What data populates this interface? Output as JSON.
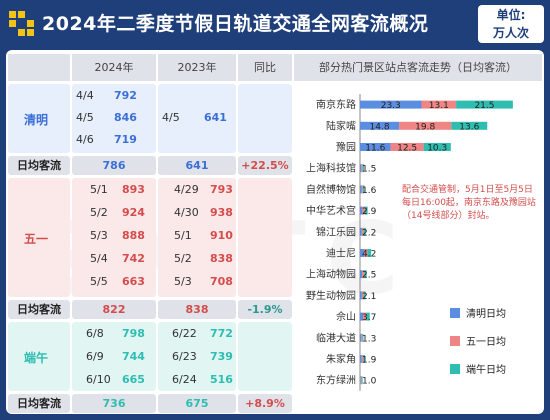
{
  "header": {
    "title": "2024年二季度节假日轨道交通全网客流概况",
    "unit_line1": "单位:",
    "unit_line2": "万人次"
  },
  "table": {
    "columns": [
      "2024年",
      "2023年",
      "同比"
    ],
    "chart_header": "部分热门景区站点客流走势（日均客流）",
    "sum_label": "日均客流",
    "sections": [
      {
        "name": "清明",
        "rows2024": [
          {
            "date": "4/4",
            "value": "792"
          },
          {
            "date": "4/5",
            "value": "846"
          },
          {
            "date": "4/6",
            "value": "719"
          }
        ],
        "rows2023": [
          {
            "date": "4/5",
            "value": "641"
          }
        ],
        "avg2024": "786",
        "avg2023": "641",
        "yoy": "+22.5%"
      },
      {
        "name": "五一",
        "rows2024": [
          {
            "date": "5/1",
            "value": "893"
          },
          {
            "date": "5/2",
            "value": "924"
          },
          {
            "date": "5/3",
            "value": "888"
          },
          {
            "date": "5/4",
            "value": "742"
          },
          {
            "date": "5/5",
            "value": "663"
          }
        ],
        "rows2023": [
          {
            "date": "4/29",
            "value": "793"
          },
          {
            "date": "4/30",
            "value": "938"
          },
          {
            "date": "5/1",
            "value": "910"
          },
          {
            "date": "5/2",
            "value": "838"
          },
          {
            "date": "5/3",
            "value": "708"
          }
        ],
        "avg2024": "822",
        "avg2023": "838",
        "yoy": "-1.9%"
      },
      {
        "name": "端午",
        "rows2024": [
          {
            "date": "6/8",
            "value": "798"
          },
          {
            "date": "6/9",
            "value": "744"
          },
          {
            "date": "6/10",
            "value": "665"
          }
        ],
        "rows2023": [
          {
            "date": "6/22",
            "value": "772"
          },
          {
            "date": "6/23",
            "value": "739"
          },
          {
            "date": "6/24",
            "value": "516"
          }
        ],
        "avg2024": "736",
        "avg2023": "675",
        "yoy": "+8.9%"
      }
    ]
  },
  "colors": {
    "qingming": "#5b8ee0",
    "wuyi": "#ef8585",
    "duanwu": "#2ebdb0",
    "blue_text": "#3b6fd8",
    "red_text": "#d44c4c"
  },
  "chart_data": {
    "type": "bar",
    "orientation": "horizontal",
    "stacked": true,
    "title": "部分热门景区站点客流走势（日均客流）",
    "categories": [
      "南京东路",
      "陆家嘴",
      "豫园",
      "上海科技馆",
      "自然博物馆",
      "中华艺术宫",
      "锦江乐园",
      "迪士尼",
      "上海动物园",
      "野生动物园",
      "佘山",
      "临港大道",
      "朱家角",
      "东方绿洲"
    ],
    "series": [
      {
        "name": "清明日均",
        "color": "#5b8ee0",
        "values": [
          23.3,
          14.8,
          11.6,
          0.5,
          0.6,
          0.9,
          0.7,
          1.5,
          0.8,
          0.7,
          1.2,
          0.5,
          0.6,
          0.3
        ]
      },
      {
        "name": "五一日均",
        "color": "#ef8585",
        "values": [
          13.1,
          19.8,
          12.5,
          0.5,
          0.5,
          1.0,
          0.7,
          1.3,
          0.8,
          0.7,
          1.2,
          0.4,
          0.6,
          0.3
        ]
      },
      {
        "name": "端午日均",
        "color": "#2ebdb0",
        "values": [
          21.5,
          13.6,
          10.3,
          0.5,
          0.5,
          1.0,
          0.8,
          1.4,
          0.9,
          0.7,
          1.3,
          0.4,
          0.7,
          0.4
        ]
      }
    ],
    "bar_labels": [
      [
        "23.3",
        "13.1",
        "21.5"
      ],
      [
        "14.8",
        "19.8",
        "13.6"
      ],
      [
        "11.6",
        "12.5",
        "10.3"
      ],
      [
        "1.5"
      ],
      [
        "1.6"
      ],
      [
        "2.9"
      ],
      [
        "2.2"
      ],
      [
        "4.2"
      ],
      [
        "2.5"
      ],
      [
        "2.1"
      ],
      [
        "3.7"
      ],
      [
        "1.3"
      ],
      [
        "1.9"
      ],
      [
        "1.0"
      ]
    ],
    "annotation": [
      "配合交通管制，5月1日至5月5日",
      "每日16:00起，南京东路及豫园站",
      "（14号线部分）封站。"
    ],
    "legend": [
      "清明日均",
      "五一日均",
      "端午日均"
    ],
    "legend_position": "bottom-right"
  }
}
